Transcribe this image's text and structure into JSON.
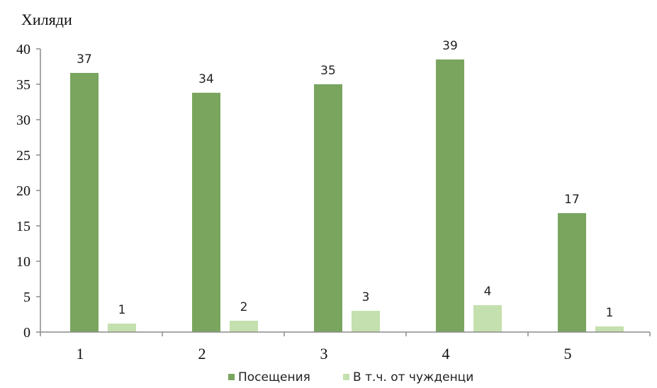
{
  "chart_data": {
    "type": "bar",
    "ylabel": "Хиляди",
    "categories": [
      "1",
      "2",
      "3",
      "4",
      "5"
    ],
    "ylim": [
      0,
      40
    ],
    "yticks": [
      0,
      5,
      10,
      15,
      20,
      25,
      30,
      35,
      40
    ],
    "grid": false,
    "legend_position": "bottom",
    "series": [
      {
        "name": "Посещения",
        "color": "#7aa55f",
        "values": [
          36.6,
          33.8,
          35.0,
          38.5,
          16.8
        ],
        "labels": [
          "37",
          "34",
          "35",
          "39",
          "17"
        ]
      },
      {
        "name": "В т.ч. от чужденци",
        "color": "#c4e0ae",
        "values": [
          1.2,
          1.6,
          3.0,
          3.8,
          0.8
        ],
        "labels": [
          "1",
          "2",
          "3",
          "4",
          "1"
        ]
      }
    ]
  }
}
